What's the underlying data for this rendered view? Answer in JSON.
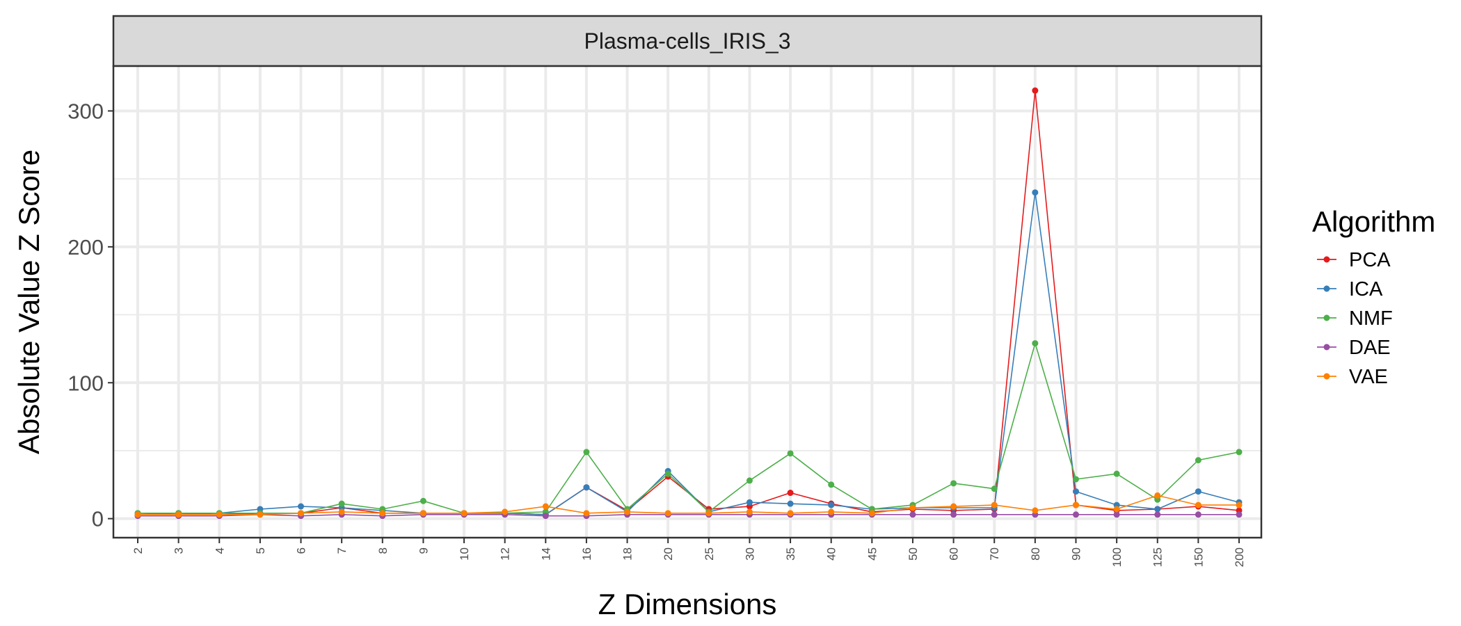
{
  "chart_data": {
    "type": "line",
    "facet_title": "Plasma-cells_IRIS_3",
    "xlabel": "Z Dimensions",
    "ylabel": "Absolute Value Z Score",
    "ylim": [
      -14,
      333
    ],
    "yticks": [
      0,
      100,
      200,
      300
    ],
    "grid": true,
    "legend_title": "Algorithm",
    "legend_position": "right",
    "categories": [
      "2",
      "3",
      "4",
      "5",
      "6",
      "7",
      "8",
      "9",
      "10",
      "12",
      "14",
      "16",
      "18",
      "20",
      "25",
      "30",
      "35",
      "40",
      "45",
      "50",
      "60",
      "70",
      "80",
      "90",
      "100",
      "125",
      "150",
      "200"
    ],
    "series": [
      {
        "name": "PCA",
        "color": "#E41A1C",
        "values": [
          3,
          4,
          3,
          4,
          4,
          8,
          4,
          4,
          4,
          4,
          3,
          23,
          6,
          31,
          7,
          9,
          19,
          11,
          5,
          7,
          6,
          7,
          315,
          10,
          6,
          7,
          9,
          6
        ]
      },
      {
        "name": "ICA",
        "color": "#377EB8",
        "values": [
          4,
          4,
          4,
          7,
          9,
          8,
          6,
          4,
          4,
          4,
          3,
          23,
          5,
          35,
          5,
          12,
          11,
          10,
          7,
          8,
          8,
          8,
          240,
          20,
          10,
          7,
          20,
          12
        ]
      },
      {
        "name": "NMF",
        "color": "#4DAF4A",
        "values": [
          4,
          4,
          4,
          4,
          4,
          11,
          7,
          13,
          4,
          4,
          5,
          49,
          7,
          33,
          5,
          28,
          48,
          25,
          7,
          10,
          26,
          22,
          129,
          29,
          33,
          14,
          43,
          49
        ]
      },
      {
        "name": "DAE",
        "color": "#984EA3",
        "values": [
          2,
          2,
          2,
          3,
          2,
          3,
          2,
          3,
          3,
          3,
          2,
          2,
          3,
          3,
          3,
          3,
          3,
          3,
          3,
          3,
          3,
          3,
          3,
          3,
          3,
          3,
          3,
          3
        ]
      },
      {
        "name": "VAE",
        "color": "#FF7F00",
        "values": [
          3,
          3,
          3,
          3,
          4,
          5,
          4,
          4,
          4,
          5,
          9,
          4,
          5,
          4,
          4,
          5,
          4,
          5,
          4,
          8,
          9,
          10,
          6,
          10,
          7,
          17,
          10,
          10
        ]
      }
    ]
  }
}
